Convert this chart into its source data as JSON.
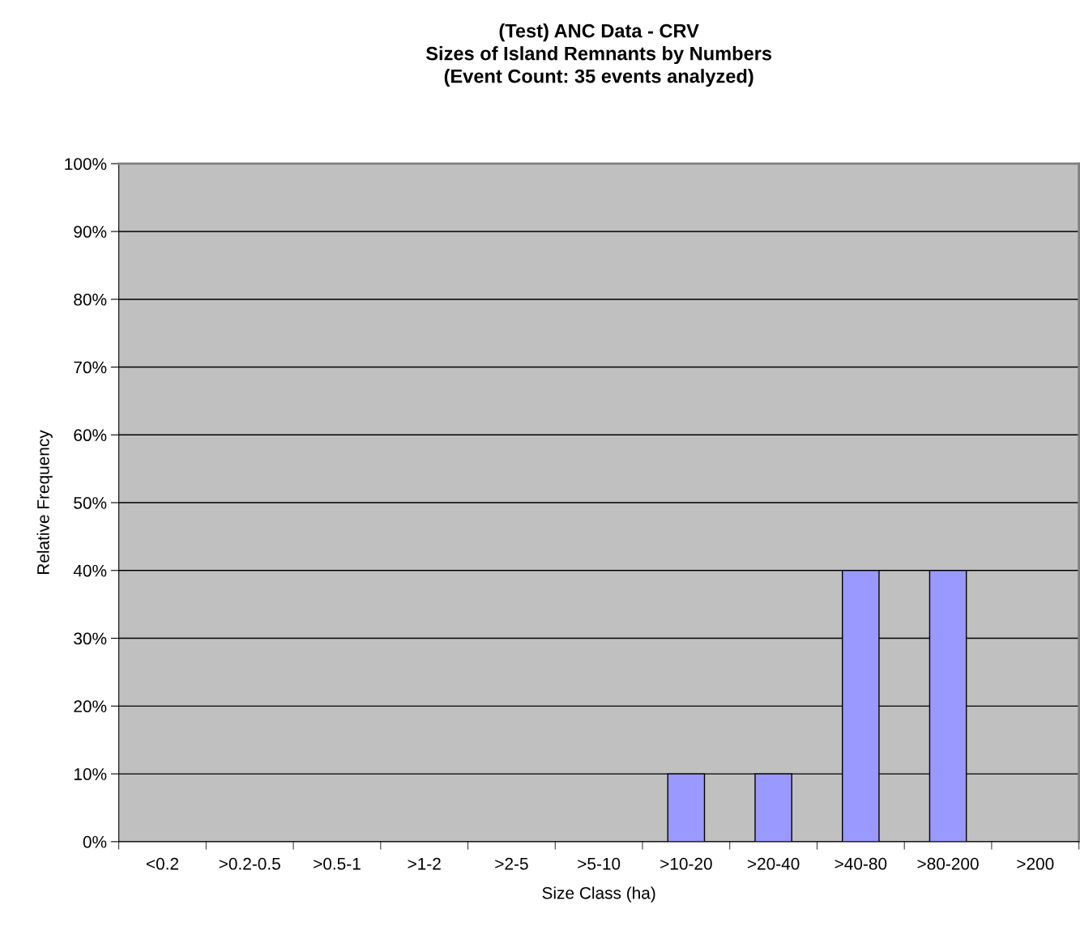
{
  "chart_data": {
    "type": "bar",
    "title": "(Test) ANC Data - CRV\nSizes of Island Remnants by Numbers\n(Event Count: 35 events analyzed)",
    "xlabel": "Size Class (ha)",
    "ylabel": "Relative Frequency",
    "categories": [
      "<0.2",
      ">0.2-0.5",
      ">0.5-1",
      ">1-2",
      ">2-5",
      ">5-10",
      ">10-20",
      ">20-40",
      ">40-80",
      ">80-200",
      ">200"
    ],
    "values": [
      0,
      0,
      0,
      0,
      0,
      0,
      10,
      10,
      40,
      40,
      0
    ],
    "color": "#9999ff",
    "ylim": [
      0,
      100
    ],
    "yticks": [
      {
        "value": 0,
        "label": "0%"
      },
      {
        "value": 10,
        "label": "10%"
      },
      {
        "value": 20,
        "label": "20%"
      },
      {
        "value": 30,
        "label": "30%"
      },
      {
        "value": 40,
        "label": "40%"
      },
      {
        "value": 50,
        "label": "50%"
      },
      {
        "value": 60,
        "label": "60%"
      },
      {
        "value": 70,
        "label": "70%"
      },
      {
        "value": 80,
        "label": "80%"
      },
      {
        "value": 90,
        "label": "90%"
      },
      {
        "value": 100,
        "label": "100%"
      }
    ],
    "grid": "y",
    "legend": false
  }
}
